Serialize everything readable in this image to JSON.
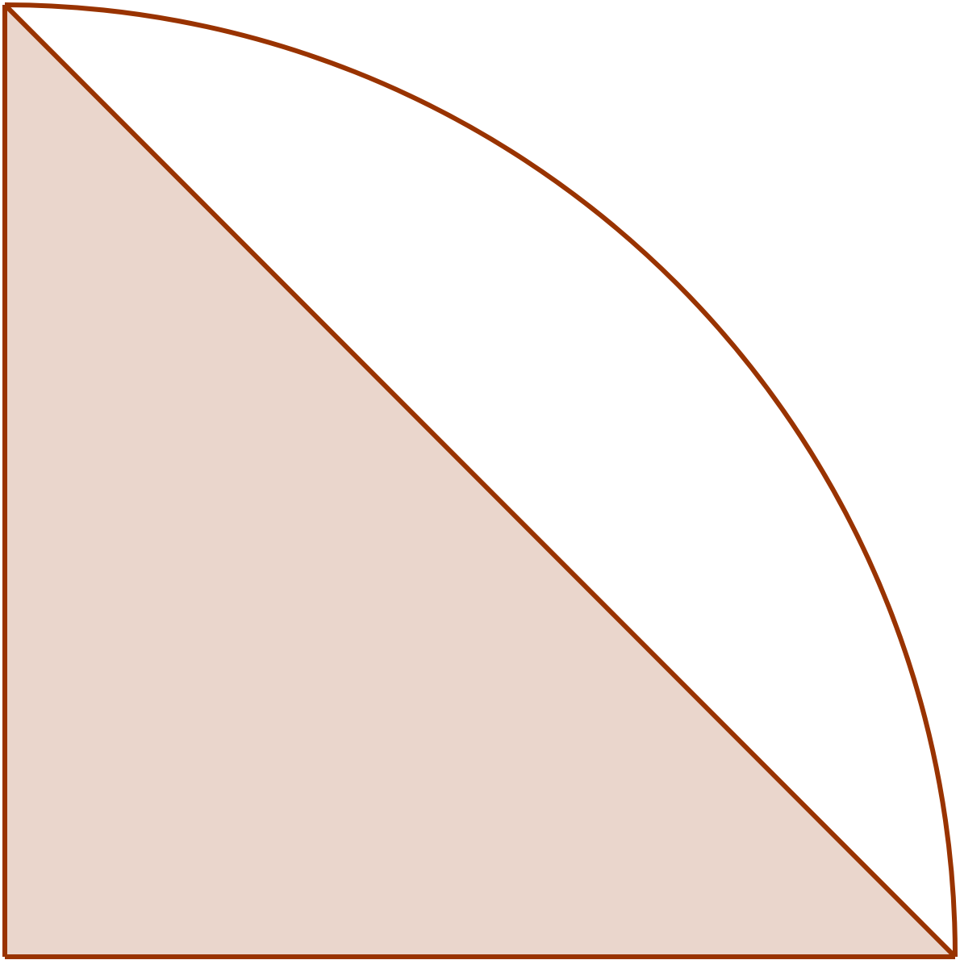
{
  "figure": {
    "shapes": [
      "quarter-circle",
      "right-triangle"
    ],
    "shaded_region": "right-triangle",
    "colors": {
      "stroke": "#993300",
      "fill": "#EAD6CC",
      "background": "#FFFFFF"
    }
  }
}
